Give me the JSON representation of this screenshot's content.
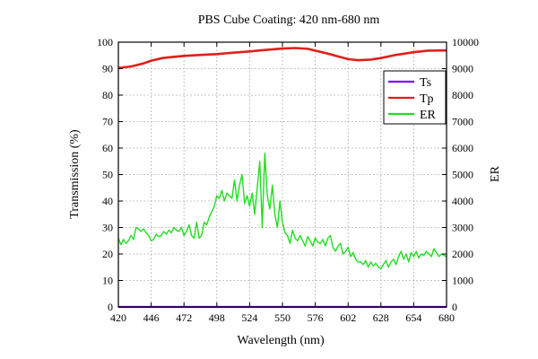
{
  "chart_data": {
    "type": "line",
    "title": "PBS Cube Coating: 420 nm-680 nm",
    "xlabel": "Wavelength (nm)",
    "ylabel": "Transmission (%)",
    "y2label": "ER",
    "xlim": [
      420,
      680
    ],
    "ylim": [
      0,
      100
    ],
    "y2lim": [
      0,
      10000
    ],
    "xticks": [
      420,
      446,
      472,
      498,
      524,
      550,
      576,
      602,
      628,
      654,
      680
    ],
    "yticks": [
      0,
      10,
      20,
      30,
      40,
      50,
      60,
      70,
      80,
      90,
      100
    ],
    "y2ticks": [
      0,
      1000,
      2000,
      3000,
      4000,
      5000,
      6000,
      7000,
      8000,
      9000,
      10000
    ],
    "grid": true,
    "legend_position": "top-right",
    "series": [
      {
        "name": "Ts",
        "color": "#8000ff",
        "axis": "left",
        "x": [
          420,
          680
        ],
        "y": [
          0,
          0
        ]
      },
      {
        "name": "Tp",
        "color": "#e0201b",
        "axis": "left",
        "x": [
          420,
          430,
          440,
          446,
          455,
          465,
          472,
          485,
          498,
          510,
          524,
          535,
          550,
          560,
          570,
          576,
          585,
          595,
          602,
          610,
          620,
          628,
          640,
          654,
          665,
          680
        ],
        "y": [
          90.3,
          90.8,
          92.0,
          93.0,
          94.0,
          94.5,
          94.8,
          95.2,
          95.5,
          96.0,
          96.5,
          97.0,
          97.6,
          97.8,
          97.5,
          96.8,
          95.8,
          94.5,
          93.6,
          93.2,
          93.4,
          94.0,
          95.2,
          96.2,
          96.8,
          96.9
        ]
      },
      {
        "name": "ER",
        "color": "#22dd22",
        "axis": "right",
        "x": [
          420,
          422,
          424,
          426,
          428,
          430,
          432,
          434,
          436,
          438,
          440,
          442,
          444,
          446,
          448,
          450,
          452,
          454,
          456,
          458,
          460,
          462,
          464,
          466,
          468,
          470,
          472,
          474,
          476,
          478,
          480,
          482,
          484,
          486,
          488,
          490,
          492,
          494,
          496,
          498,
          500,
          502,
          504,
          506,
          508,
          510,
          512,
          514,
          516,
          518,
          520,
          522,
          524,
          526,
          528,
          530,
          532,
          534,
          536,
          538,
          540,
          542,
          544,
          546,
          548,
          550,
          552,
          554,
          556,
          558,
          560,
          562,
          564,
          566,
          568,
          570,
          572,
          574,
          576,
          578,
          580,
          582,
          584,
          586,
          588,
          590,
          592,
          594,
          596,
          598,
          600,
          602,
          604,
          606,
          608,
          610,
          612,
          614,
          616,
          618,
          620,
          622,
          624,
          626,
          628,
          630,
          632,
          634,
          636,
          638,
          640,
          642,
          644,
          646,
          648,
          650,
          652,
          654,
          656,
          658,
          660,
          662,
          664,
          666,
          668,
          670,
          672,
          674,
          676,
          678,
          680
        ],
        "y": [
          2600,
          2350,
          2550,
          2400,
          2500,
          2700,
          2550,
          3000,
          2950,
          2850,
          2950,
          2800,
          2700,
          2500,
          2550,
          2750,
          2650,
          2700,
          2850,
          2750,
          2900,
          2800,
          3000,
          2900,
          2850,
          3000,
          2700,
          2850,
          3100,
          2700,
          2600,
          3200,
          2600,
          2700,
          3200,
          3100,
          3400,
          3600,
          3800,
          4200,
          4100,
          4400,
          4000,
          4300,
          4200,
          4100,
          4800,
          4000,
          4600,
          5000,
          3900,
          4200,
          3800,
          4300,
          3500,
          4500,
          5500,
          3000,
          5800,
          4200,
          3700,
          4600,
          3500,
          3000,
          4000,
          3200,
          2800,
          2700,
          2400,
          2900,
          2600,
          2500,
          2700,
          2500,
          2300,
          2650,
          2500,
          2300,
          2600,
          2450,
          2400,
          2550,
          2300,
          2600,
          2700,
          2250,
          2100,
          2300,
          2400,
          2000,
          2100,
          2250,
          1900,
          2050,
          1800,
          1700,
          1700,
          1600,
          1750,
          1500,
          1700,
          1550,
          1650,
          1500,
          1450,
          1600,
          1750,
          1500,
          1700,
          1800,
          1600,
          1900,
          2100,
          1800,
          2000,
          1700,
          2050,
          1900,
          2100,
          1850,
          2000,
          1950,
          2100,
          2000,
          1900,
          2200,
          2050,
          1900,
          2000,
          1950,
          1900
        ]
      }
    ]
  }
}
